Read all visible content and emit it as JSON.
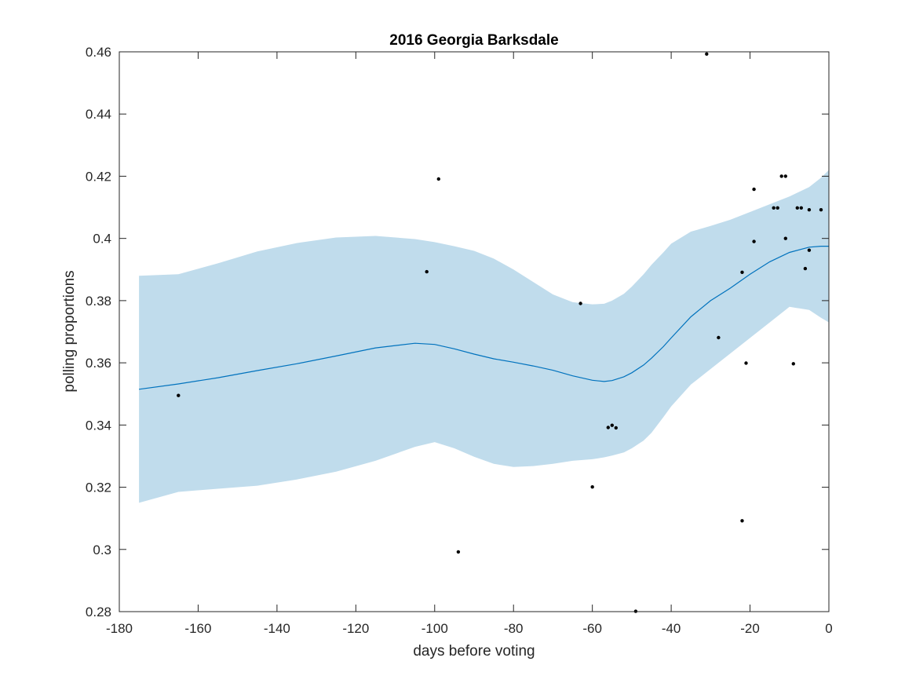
{
  "chart_data": {
    "type": "scatter",
    "title": "2016 Georgia Barksdale",
    "xlabel": "days before voting",
    "ylabel": "polling proportions",
    "xlim": [
      -180,
      0
    ],
    "ylim": [
      0.28,
      0.46
    ],
    "xticks": [
      -180,
      -160,
      -140,
      -120,
      -100,
      -80,
      -60,
      -40,
      -20,
      0
    ],
    "yticks": [
      0.28,
      0.3,
      0.32,
      0.34,
      0.36,
      0.38,
      0.4,
      0.42,
      0.44,
      0.46
    ],
    "xtick_labels": [
      "-180",
      "-160",
      "-140",
      "-120",
      "-100",
      "-80",
      "-60",
      "-40",
      "-20",
      "0"
    ],
    "ytick_labels": [
      "0.28",
      "0.3",
      "0.32",
      "0.34",
      "0.36",
      "0.38",
      "0.4",
      "0.42",
      "0.44",
      "0.46"
    ],
    "grid": false,
    "colors": {
      "fit_line": "#0072bd",
      "band": "#c0dcec",
      "points": "#000000",
      "axes": "#262626"
    },
    "points": [
      {
        "x": -165,
        "y": 0.3495
      },
      {
        "x": -102,
        "y": 0.3893
      },
      {
        "x": -99,
        "y": 0.4191
      },
      {
        "x": -94,
        "y": 0.2992
      },
      {
        "x": -63,
        "y": 0.3791
      },
      {
        "x": -60,
        "y": 0.3201
      },
      {
        "x": -56,
        "y": 0.3392
      },
      {
        "x": -55,
        "y": 0.3399
      },
      {
        "x": -54,
        "y": 0.3391
      },
      {
        "x": -49,
        "y": 0.2801
      },
      {
        "x": -31,
        "y": 0.4593
      },
      {
        "x": -28,
        "y": 0.3681
      },
      {
        "x": -22,
        "y": 0.3891
      },
      {
        "x": -22,
        "y": 0.3092
      },
      {
        "x": -21,
        "y": 0.3599
      },
      {
        "x": -19,
        "y": 0.4158
      },
      {
        "x": -19,
        "y": 0.399
      },
      {
        "x": -14,
        "y": 0.4098
      },
      {
        "x": -13,
        "y": 0.4098
      },
      {
        "x": -12,
        "y": 0.42
      },
      {
        "x": -11,
        "y": 0.42
      },
      {
        "x": -11,
        "y": 0.4
      },
      {
        "x": -9,
        "y": 0.3597
      },
      {
        "x": -8,
        "y": 0.4098
      },
      {
        "x": -7,
        "y": 0.4098
      },
      {
        "x": -6,
        "y": 0.3903
      },
      {
        "x": -5,
        "y": 0.4092
      },
      {
        "x": -5,
        "y": 0.3962
      },
      {
        "x": -2,
        "y": 0.4092
      }
    ],
    "fit": {
      "x": [
        -175,
        -165,
        -155,
        -145,
        -135,
        -125,
        -115,
        -105,
        -100,
        -95,
        -90,
        -85,
        -80,
        -75,
        -70,
        -65,
        -60,
        -57,
        -55,
        -52,
        -50,
        -47,
        -45,
        -42,
        -40,
        -35,
        -30,
        -25,
        -20,
        -15,
        -10,
        -5,
        -2,
        0
      ],
      "mean": [
        0.3515,
        0.3532,
        0.3552,
        0.3575,
        0.3597,
        0.3622,
        0.3648,
        0.3663,
        0.3659,
        0.3645,
        0.3628,
        0.3613,
        0.3602,
        0.359,
        0.3576,
        0.3558,
        0.3544,
        0.354,
        0.3543,
        0.3555,
        0.3568,
        0.3593,
        0.3615,
        0.3652,
        0.368,
        0.3748,
        0.38,
        0.384,
        0.3885,
        0.3925,
        0.3955,
        0.3972,
        0.3975,
        0.3975
      ],
      "upper": [
        0.388,
        0.3885,
        0.392,
        0.3958,
        0.3985,
        0.4003,
        0.4008,
        0.3998,
        0.3988,
        0.3975,
        0.396,
        0.3935,
        0.39,
        0.386,
        0.382,
        0.3795,
        0.3788,
        0.379,
        0.38,
        0.3822,
        0.3845,
        0.3885,
        0.3915,
        0.3955,
        0.3983,
        0.4022,
        0.404,
        0.406,
        0.4085,
        0.411,
        0.4135,
        0.4165,
        0.4195,
        0.422
      ],
      "lower": [
        0.315,
        0.3185,
        0.3195,
        0.3205,
        0.3225,
        0.325,
        0.3285,
        0.333,
        0.3345,
        0.3325,
        0.3298,
        0.3275,
        0.3265,
        0.3268,
        0.3275,
        0.3285,
        0.329,
        0.3296,
        0.3302,
        0.3312,
        0.3325,
        0.335,
        0.3375,
        0.3425,
        0.346,
        0.353,
        0.358,
        0.363,
        0.368,
        0.373,
        0.378,
        0.377,
        0.3745,
        0.373
      ]
    }
  }
}
